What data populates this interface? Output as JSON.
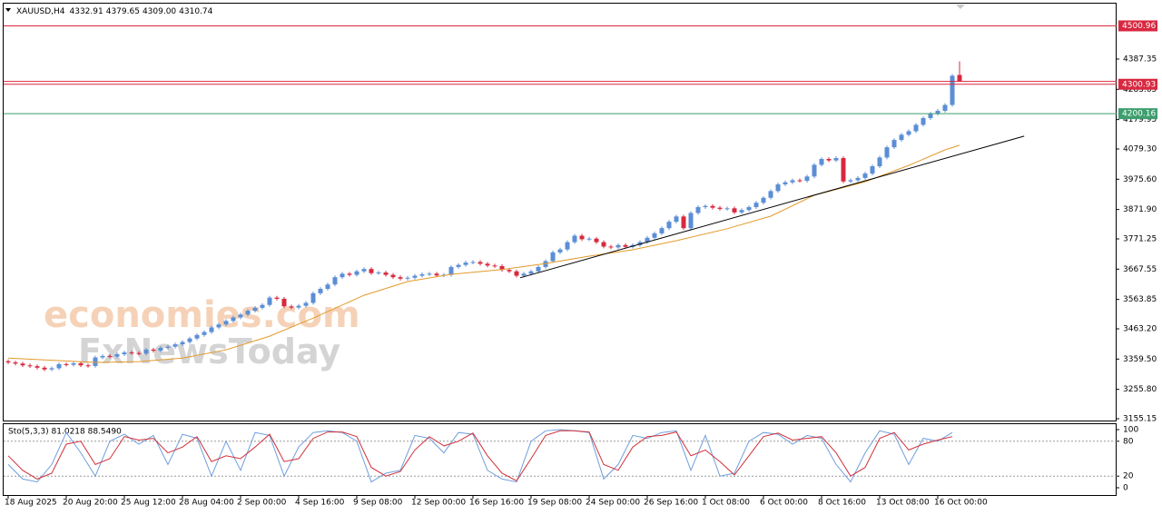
{
  "chart_data": [
    {
      "type": "candlestick",
      "title": "XAUUSD,H4",
      "header_values": [
        "4332.91",
        "4379.65",
        "4309.00",
        "4310.74"
      ],
      "watermark": [
        "economies.com",
        "FxNewsToday"
      ],
      "categories": [
        "18 Aug 2025",
        null,
        null,
        null,
        null,
        null,
        null,
        null,
        "20 Aug 20:00",
        null,
        null,
        null,
        null,
        null,
        null,
        null,
        "25 Aug 12:00",
        null,
        null,
        null,
        null,
        null,
        null,
        null,
        "28 Aug 04:00",
        null,
        null,
        null,
        null,
        null,
        null,
        null,
        "2 Sep 00:00",
        null,
        null,
        null,
        null,
        null,
        null,
        null,
        "4 Sep 16:00",
        null,
        null,
        null,
        null,
        null,
        null,
        null,
        "9 Sep 08:00",
        null,
        null,
        null,
        null,
        null,
        null,
        null,
        "12 Sep 00:00",
        null,
        null,
        null,
        null,
        null,
        null,
        null,
        "16 Sep 16:00",
        null,
        null,
        null,
        null,
        null,
        null,
        null,
        "19 Sep 08:00",
        null,
        null,
        null,
        null,
        null,
        null,
        null,
        "24 Sep 00:00",
        null,
        null,
        null,
        null,
        null,
        null,
        null,
        "26 Sep 16:00",
        null,
        null,
        null,
        null,
        null,
        null,
        null,
        "1 Oct 08:00",
        null,
        null,
        null,
        null,
        null,
        null,
        null,
        "6 Oct 00:00",
        null,
        null,
        null,
        null,
        null,
        null,
        null,
        "8 Oct 16:00",
        null,
        null,
        null,
        null,
        null,
        null,
        null,
        "13 Oct 08:00",
        null,
        null,
        null,
        null,
        null,
        null,
        null,
        "16 Oct 00:00",
        null,
        null,
        null
      ],
      "open": [
        3352,
        3348,
        3344,
        3338,
        3335,
        3330,
        3324,
        3328,
        3342,
        3340,
        3345,
        3338,
        3336,
        3365,
        3370,
        3368,
        3376,
        3382,
        3380,
        3378,
        3392,
        3388,
        3398,
        3402,
        3410,
        3418,
        3430,
        3442,
        3452,
        3468,
        3478,
        3490,
        3502,
        3512,
        3525,
        3535,
        3545,
        3570,
        3566,
        3540,
        3536,
        3542,
        3552,
        3585,
        3600,
        3615,
        3640,
        3652,
        3648,
        3660,
        3668,
        3654,
        3656,
        3648,
        3640,
        3635,
        3638,
        3645,
        3650,
        3652,
        3646,
        3648,
        3675,
        3682,
        3690,
        3692,
        3686,
        3680,
        3678,
        3665,
        3660,
        3645,
        3652,
        3660,
        3675,
        3695,
        3725,
        3735,
        3760,
        3782,
        3770,
        3772,
        3760,
        3745,
        3742,
        3750,
        3744,
        3750,
        3760,
        3775,
        3790,
        3808,
        3830,
        3848,
        3808,
        3860,
        3880,
        3884,
        3878,
        3874,
        3876,
        3862,
        3870,
        3880,
        3895,
        3912,
        3935,
        3958,
        3965,
        3972,
        3970,
        3985,
        4025,
        4045,
        4040,
        4048,
        3968,
        3972,
        3980,
        3995,
        4020,
        4050,
        4085,
        4110,
        4128,
        4140,
        4162,
        4185,
        4200,
        4210,
        4230,
        4332.91
      ],
      "high": [
        3358,
        3354,
        3350,
        3344,
        3341,
        3336,
        3334,
        3348,
        3348,
        3351,
        3351,
        3344,
        3371,
        3376,
        3376,
        3382,
        3388,
        3388,
        3386,
        3398,
        3398,
        3404,
        3408,
        3416,
        3424,
        3436,
        3448,
        3458,
        3474,
        3484,
        3496,
        3508,
        3518,
        3531,
        3541,
        3551,
        3576,
        3576,
        3572,
        3546,
        3548,
        3558,
        3591,
        3606,
        3621,
        3646,
        3658,
        3658,
        3666,
        3674,
        3674,
        3662,
        3662,
        3654,
        3646,
        3644,
        3651,
        3656,
        3658,
        3658,
        3654,
        3681,
        3688,
        3696,
        3698,
        3698,
        3692,
        3686,
        3684,
        3671,
        3666,
        3658,
        3666,
        3681,
        3701,
        3731,
        3741,
        3766,
        3788,
        3788,
        3778,
        3778,
        3766,
        3751,
        3756,
        3756,
        3756,
        3766,
        3781,
        3796,
        3814,
        3836,
        3854,
        3854,
        3866,
        3886,
        3890,
        3890,
        3884,
        3882,
        3882,
        3876,
        3886,
        3901,
        3918,
        3941,
        3964,
        3971,
        3978,
        3978,
        3991,
        4031,
        4051,
        4051,
        4054,
        4054,
        3978,
        3986,
        4001,
        4026,
        4056,
        4091,
        4116,
        4134,
        4146,
        4168,
        4191,
        4206,
        4216,
        4236,
        4336,
        4379.65
      ],
      "low": [
        3342,
        3338,
        3332,
        3329,
        3324,
        3318,
        3318,
        3322,
        3334,
        3334,
        3332,
        3330,
        3330,
        3359,
        3362,
        3362,
        3370,
        3374,
        3372,
        3372,
        3382,
        3382,
        3392,
        3396,
        3404,
        3412,
        3424,
        3436,
        3446,
        3462,
        3472,
        3484,
        3496,
        3506,
        3519,
        3529,
        3539,
        3560,
        3534,
        3530,
        3530,
        3536,
        3546,
        3579,
        3594,
        3609,
        3634,
        3642,
        3642,
        3654,
        3648,
        3648,
        3642,
        3634,
        3629,
        3629,
        3632,
        3639,
        3644,
        3640,
        3640,
        3642,
        3669,
        3676,
        3684,
        3680,
        3674,
        3672,
        3659,
        3654,
        3639,
        3639,
        3646,
        3654,
        3669,
        3689,
        3719,
        3729,
        3754,
        3764,
        3764,
        3754,
        3739,
        3736,
        3736,
        3738,
        3738,
        3744,
        3754,
        3769,
        3784,
        3802,
        3824,
        3802,
        3802,
        3854,
        3874,
        3872,
        3868,
        3868,
        3856,
        3856,
        3864,
        3874,
        3889,
        3906,
        3929,
        3952,
        3959,
        3964,
        3964,
        3979,
        4019,
        4034,
        4034,
        3962,
        3962,
        3966,
        3974,
        3989,
        4014,
        4044,
        4079,
        4104,
        4122,
        4134,
        4156,
        4179,
        4194,
        4204,
        4224,
        4309
      ],
      "close": [
        3348,
        3344,
        3338,
        3335,
        3330,
        3324,
        3328,
        3342,
        3340,
        3345,
        3338,
        3336,
        3365,
        3370,
        3368,
        3376,
        3382,
        3380,
        3378,
        3392,
        3388,
        3398,
        3402,
        3410,
        3418,
        3430,
        3442,
        3452,
        3468,
        3478,
        3490,
        3502,
        3512,
        3525,
        3535,
        3545,
        3570,
        3566,
        3540,
        3536,
        3542,
        3552,
        3585,
        3600,
        3615,
        3640,
        3652,
        3648,
        3660,
        3668,
        3654,
        3656,
        3648,
        3640,
        3635,
        3638,
        3645,
        3650,
        3652,
        3646,
        3648,
        3675,
        3682,
        3690,
        3692,
        3686,
        3680,
        3678,
        3665,
        3660,
        3645,
        3652,
        3660,
        3675,
        3695,
        3725,
        3735,
        3760,
        3782,
        3770,
        3772,
        3760,
        3745,
        3742,
        3750,
        3744,
        3750,
        3760,
        3775,
        3790,
        3808,
        3830,
        3848,
        3808,
        3860,
        3880,
        3884,
        3878,
        3874,
        3876,
        3862,
        3870,
        3880,
        3895,
        3912,
        3935,
        3958,
        3965,
        3972,
        3970,
        3985,
        4025,
        4045,
        4040,
        4048,
        3968,
        3972,
        3980,
        3995,
        4020,
        4050,
        4085,
        4110,
        4128,
        4140,
        4162,
        4185,
        4200,
        4210,
        4230,
        4330,
        4310.74
      ],
      "up_color": "#5b8ed6",
      "down_color": "#d8283f",
      "ylim": [
        3145.8,
        4574.0
      ],
      "yticks": [
        4387.35,
        4283.65,
        4179.95,
        {
          "value": 4079.3,
          "label": "4079.30"
        },
        {
          "value": 3975.6,
          "label": "3975.60"
        },
        {
          "value": 3871.9,
          "label": "3871.90"
        },
        3771.25,
        3667.55,
        3563.85,
        {
          "value": 3463.2,
          "label": "3463.20"
        },
        {
          "value": 3359.5,
          "label": "3359.50"
        },
        {
          "value": 3255.8,
          "label": "3255.80"
        },
        3155.15
      ],
      "levels": [
        {
          "value": 4500.96,
          "color": "#d8283f"
        },
        {
          "value": 4300.93,
          "color": "#d8283f"
        },
        {
          "value": 4200.16,
          "color": "#3d9e6e"
        }
      ],
      "ma": {
        "color": "#e39a2b",
        "x": [
          0,
          12,
          18,
          24,
          30,
          36,
          42,
          49,
          55,
          61,
          68,
          74,
          80,
          86,
          92,
          99,
          105,
          111,
          118,
          124,
          129,
          131
        ],
        "values": [
          3363,
          3348,
          3351,
          3363,
          3391,
          3438,
          3500,
          3578,
          3625,
          3650,
          3666,
          3687,
          3712,
          3734,
          3765,
          3806,
          3849,
          3921,
          3967,
          4023,
          4076,
          4092
        ]
      },
      "trendline": {
        "color": "#000000",
        "x": [
          70.5,
          139.9
        ],
        "values": [
          3638,
          4123
        ]
      }
    },
    {
      "type": "line",
      "title": "Sto(5,3,3) 81.0218 88.5490",
      "x": [
        0,
        2,
        4,
        6,
        8,
        10,
        12,
        14,
        16,
        18,
        20,
        22,
        24,
        26,
        28,
        30,
        32,
        34,
        36,
        38,
        40,
        42,
        44,
        46,
        48,
        50,
        52,
        54,
        56,
        58,
        60,
        62,
        64,
        66,
        68,
        70,
        72,
        74,
        76,
        78,
        80,
        82,
        84,
        86,
        88,
        90,
        92,
        94,
        96,
        98,
        100,
        102,
        104,
        106,
        108,
        110,
        112,
        114,
        116,
        118,
        120,
        122,
        124,
        126,
        128,
        130
      ],
      "series": [
        {
          "color": "#6f9fdc",
          "values": [
            40,
            15,
            10,
            40,
            95,
            60,
            20,
            80,
            92,
            75,
            90,
            40,
            92,
            85,
            20,
            80,
            30,
            95,
            90,
            20,
            70,
            95,
            98,
            95,
            80,
            10,
            25,
            30,
            90,
            85,
            60,
            95,
            92,
            30,
            15,
            10,
            80,
            98,
            100,
            98,
            95,
            15,
            40,
            90,
            85,
            95,
            98,
            30,
            90,
            20,
            25,
            80,
            95,
            92,
            75,
            90,
            85,
            40,
            10,
            60,
            98,
            92,
            40,
            85,
            80,
            95
          ]
        },
        {
          "color": "#d0303a",
          "values": [
            55,
            30,
            15,
            25,
            75,
            80,
            40,
            50,
            88,
            82,
            85,
            60,
            70,
            88,
            45,
            55,
            50,
            70,
            92,
            45,
            50,
            85,
            96,
            96,
            88,
            35,
            20,
            28,
            65,
            88,
            72,
            80,
            94,
            55,
            25,
            12,
            50,
            90,
            98,
            98,
            96,
            40,
            30,
            70,
            88,
            90,
            96,
            55,
            65,
            45,
            22,
            55,
            88,
            94,
            82,
            85,
            88,
            60,
            20,
            35,
            85,
            95,
            65,
            75,
            82,
            88
          ]
        }
      ],
      "ylim": [
        -12.5,
        107.8
      ],
      "yticks": [
        100,
        80,
        20,
        0
      ],
      "levels": [
        80,
        20
      ]
    }
  ]
}
